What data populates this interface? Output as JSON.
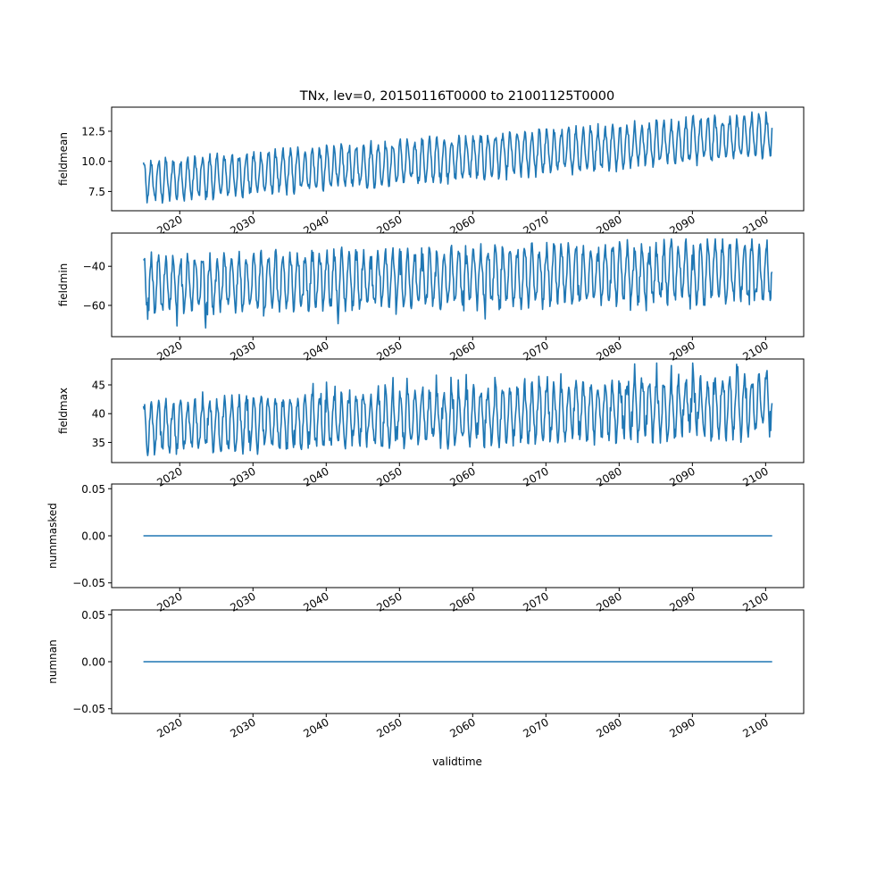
{
  "title": "TNx, lev=0, 20150116T0000 to 21001125T0000",
  "chart_data": {
    "type": "line",
    "title": "TNx, lev=0, 20150116T0000 to 21001125T0000",
    "xlabel": "validtime",
    "line_color": "#1f77b4",
    "x_range_years": [
      2015.04,
      2100.9
    ],
    "x_axis_limits_years": [
      2010.7,
      2105.2
    ],
    "x_ticks": [
      {
        "value": 2020,
        "label": "2020"
      },
      {
        "value": 2030,
        "label": "2030"
      },
      {
        "value": 2040,
        "label": "2040"
      },
      {
        "value": 2050,
        "label": "2050"
      },
      {
        "value": 2060,
        "label": "2060"
      },
      {
        "value": 2070,
        "label": "2070"
      },
      {
        "value": 2080,
        "label": "2080"
      },
      {
        "value": 2090,
        "label": "2090"
      },
      {
        "value": 2100,
        "label": "2100"
      }
    ],
    "panels": [
      {
        "name": "fieldmean",
        "ylabel": "fieldmean",
        "ylim": [
          5.9,
          14.5
        ],
        "yticks": [
          {
            "value": 7.5,
            "label": "7.5"
          },
          {
            "value": 10.0,
            "label": "10.0"
          },
          {
            "value": 12.5,
            "label": "12.5"
          }
        ],
        "trend_start": 8.3,
        "trend_end": 12.2,
        "amplitude_start": 1.6,
        "amplitude_end": 1.7,
        "range": [
          6.2,
          14.1
        ]
      },
      {
        "name": "fieldmin",
        "ylabel": "fieldmin",
        "ylim": [
          -76.0,
          -23.0
        ],
        "yticks": [
          {
            "value": -60,
            "label": "−60"
          },
          {
            "value": -40,
            "label": "−40"
          }
        ],
        "trend_start": -49.0,
        "trend_end": -42.0,
        "amplitude_start": 13.0,
        "amplitude_end": 14.5,
        "range": [
          -73.5,
          -26.0
        ]
      },
      {
        "name": "fieldmax",
        "ylabel": "fieldmax",
        "ylim": [
          31.5,
          49.5
        ],
        "yticks": [
          {
            "value": 35,
            "label": "35"
          },
          {
            "value": 40,
            "label": "40"
          },
          {
            "value": 45,
            "label": "45"
          }
        ],
        "trend_start": 37.5,
        "trend_end": 41.5,
        "amplitude_start": 4.0,
        "amplitude_end": 5.0,
        "range": [
          32.3,
          48.8
        ]
      },
      {
        "name": "nummasked",
        "ylabel": "nummasked",
        "ylim": [
          -0.055,
          0.055
        ],
        "yticks": [
          {
            "value": -0.05,
            "label": "−0.05"
          },
          {
            "value": 0.0,
            "label": "0.00"
          },
          {
            "value": 0.05,
            "label": "0.05"
          }
        ],
        "constant": 0.0
      },
      {
        "name": "numnan",
        "ylabel": "numnan",
        "ylim": [
          -0.055,
          0.055
        ],
        "yticks": [
          {
            "value": -0.05,
            "label": "−0.05"
          },
          {
            "value": 0.0,
            "label": "0.00"
          },
          {
            "value": 0.05,
            "label": "0.05"
          }
        ],
        "constant": 0.0
      }
    ]
  }
}
